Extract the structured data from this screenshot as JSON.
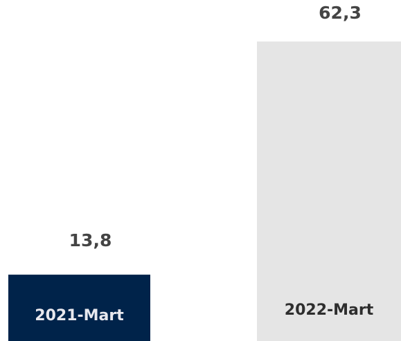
{
  "chart_data": {
    "type": "bar",
    "categories": [
      "2021-Mart",
      "2022-Mart"
    ],
    "values": [
      13.8,
      62.3
    ],
    "value_labels": [
      "13,8",
      "62,3"
    ],
    "colors": [
      "#00234a",
      "#e5e5e5"
    ],
    "label_colors": [
      "#e8e8ee",
      "#2e2e2e"
    ]
  }
}
